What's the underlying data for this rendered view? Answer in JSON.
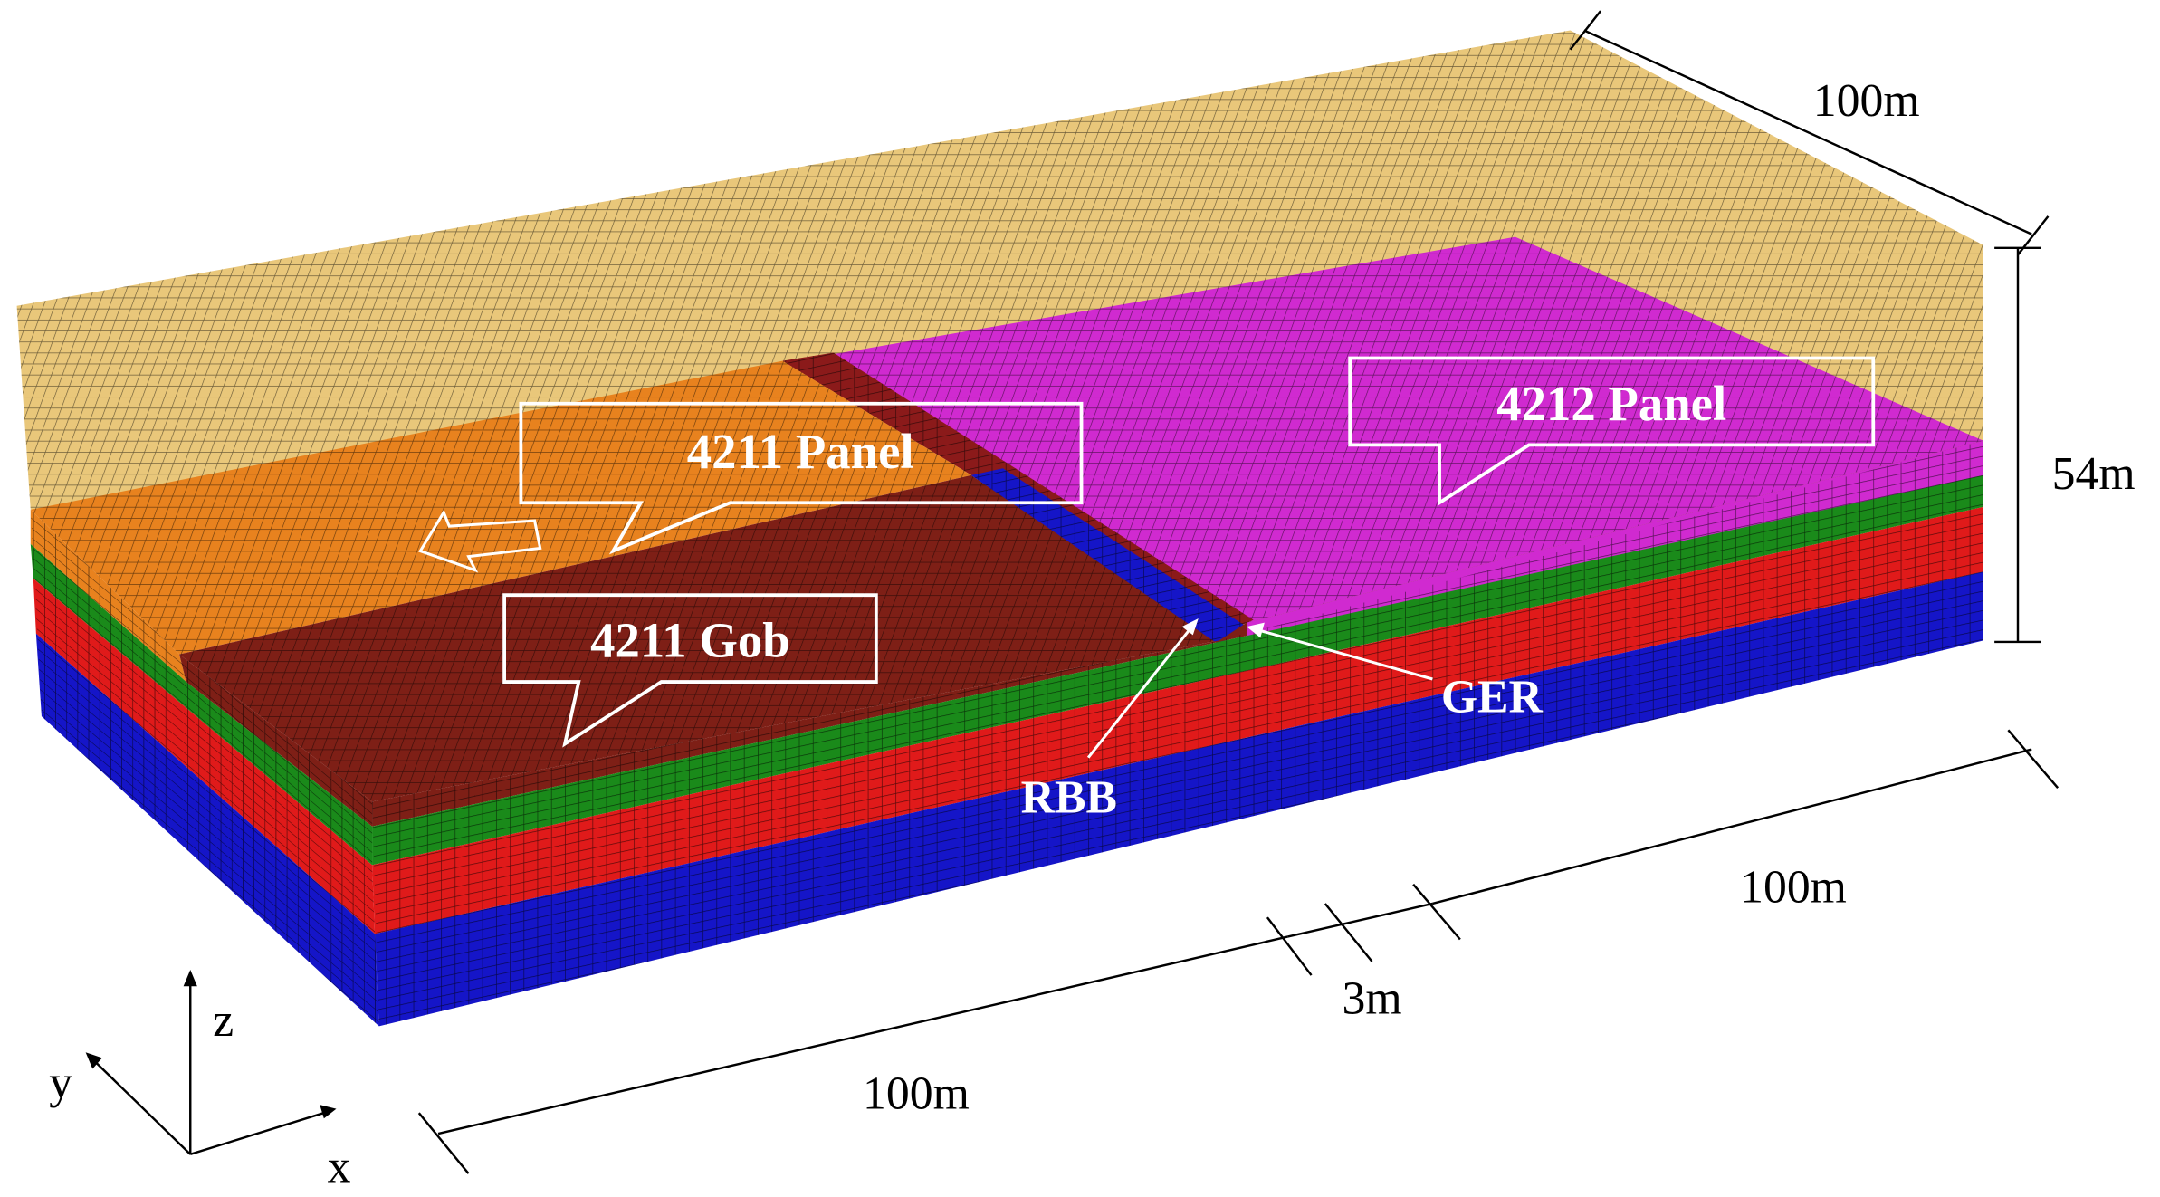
{
  "callouts": {
    "panel_4211": "4211 Panel",
    "panel_4212": "4212 Panel",
    "gob_4211": "4211 Gob"
  },
  "markers": {
    "rbb": "RBB",
    "ger": "GER"
  },
  "dimensions": {
    "top_length": "100m",
    "height": "54m",
    "right_length": "100m",
    "pillar": "3m",
    "front_length": "100m"
  },
  "axes": {
    "x": "x",
    "y": "y",
    "z": "z"
  }
}
